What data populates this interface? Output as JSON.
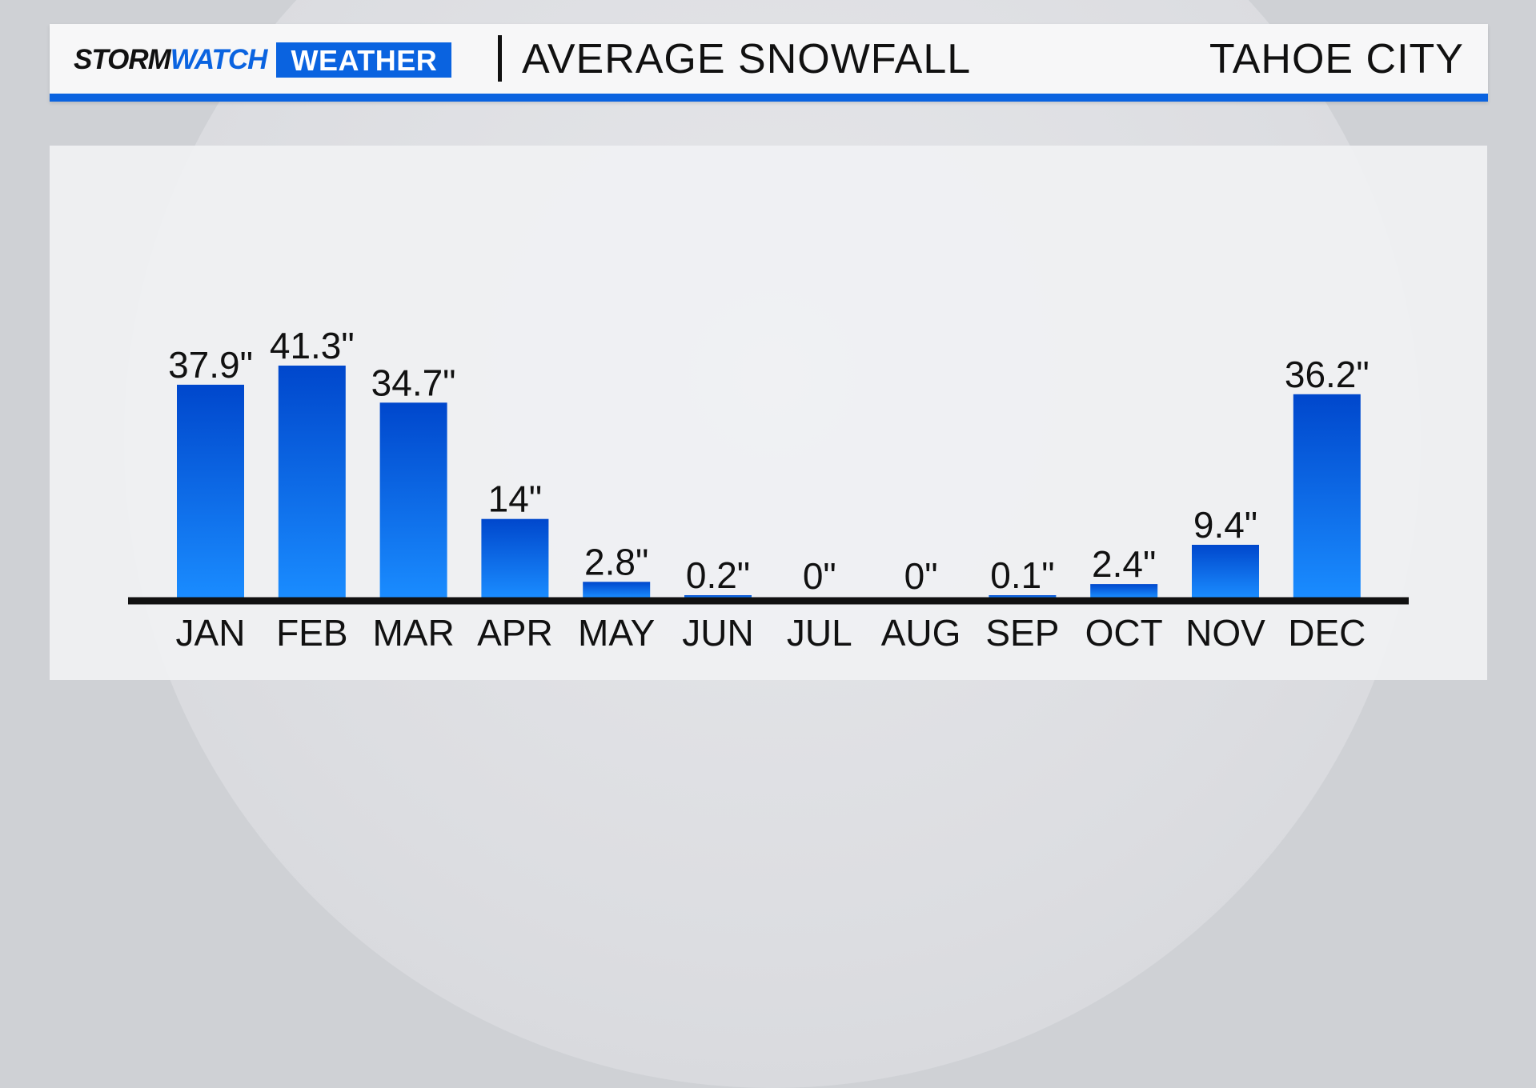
{
  "header": {
    "brand_storm": "STORM",
    "brand_watch": "WATCH",
    "brand_weather": "WEATHER",
    "title": "AVERAGE SNOWFALL",
    "location": "TAHOE CITY"
  },
  "colors": {
    "accent": "#0a63e0",
    "bar_top": "#0047cc",
    "bar_bottom": "#1a8cff",
    "axis": "#111111"
  },
  "chart_data": {
    "type": "bar",
    "categories": [
      "JAN",
      "FEB",
      "MAR",
      "APR",
      "MAY",
      "JUN",
      "JUL",
      "AUG",
      "SEP",
      "OCT",
      "NOV",
      "DEC"
    ],
    "values": [
      37.9,
      41.3,
      34.7,
      14,
      2.8,
      0.2,
      0,
      0,
      0.1,
      2.4,
      9.4,
      36.2
    ],
    "labels": [
      "37.9\"",
      "41.3\"",
      "34.7\"",
      "14\"",
      "2.8\"",
      "0.2\"",
      "0\"",
      "0\"",
      "0.1\"",
      "2.4\"",
      "9.4\"",
      "36.2\""
    ],
    "title": "AVERAGE SNOWFALL",
    "xlabel": "",
    "ylabel": "",
    "ylim": [
      0,
      41.3
    ],
    "grid": false,
    "legend": "none"
  }
}
